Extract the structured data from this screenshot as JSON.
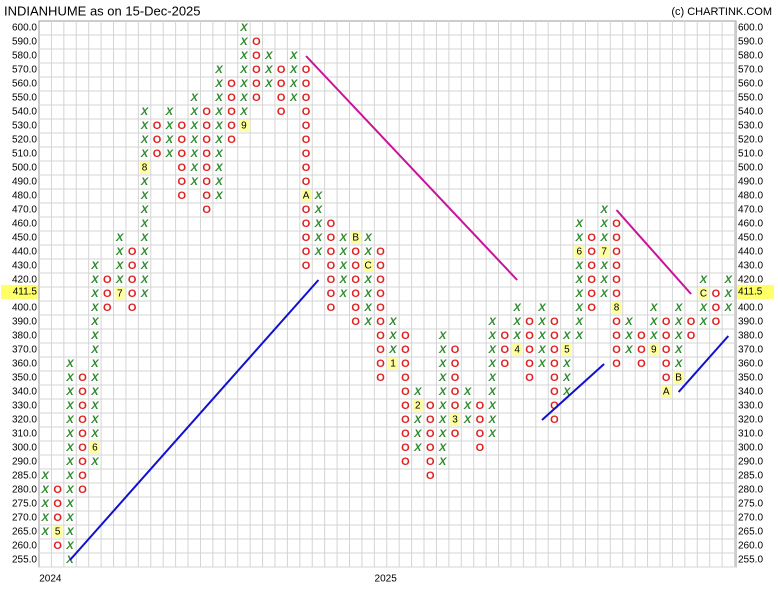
{
  "chart_data": {
    "type": "point-and-figure",
    "title": "INDIANHUME as on 15-Dec-2025",
    "credit": "(c) CHARTINK.COM",
    "x_color": "#2e8b2e",
    "o_color": "#e02020",
    "grid": true,
    "box_levels": [
      600,
      590,
      580,
      570,
      560,
      550,
      540,
      530,
      520,
      510,
      500,
      490,
      480,
      470,
      460,
      450,
      440,
      430,
      420,
      410,
      400,
      390,
      380,
      370,
      360,
      350,
      340,
      330,
      320,
      310,
      300,
      290,
      285,
      280,
      275,
      270,
      265,
      260,
      255
    ],
    "yticks": [
      {
        "value": 600,
        "label": "600.0"
      },
      {
        "value": 590,
        "label": "590.0"
      },
      {
        "value": 580,
        "label": "580.0"
      },
      {
        "value": 570,
        "label": "570.0"
      },
      {
        "value": 560,
        "label": "560.0"
      },
      {
        "value": 550,
        "label": "550.0"
      },
      {
        "value": 540,
        "label": "540.0"
      },
      {
        "value": 530,
        "label": "530.0"
      },
      {
        "value": 520,
        "label": "520.0"
      },
      {
        "value": 510,
        "label": "510.0"
      },
      {
        "value": 500,
        "label": "500.0"
      },
      {
        "value": 490,
        "label": "490.0"
      },
      {
        "value": 480,
        "label": "480.0"
      },
      {
        "value": 470,
        "label": "470.0"
      },
      {
        "value": 460,
        "label": "460.0"
      },
      {
        "value": 450,
        "label": "450.0"
      },
      {
        "value": 440,
        "label": "440.0"
      },
      {
        "value": 430,
        "label": "430.0"
      },
      {
        "value": 420,
        "label": "420.0"
      },
      {
        "value": 400,
        "label": "400.0"
      },
      {
        "value": 390,
        "label": "390.0"
      },
      {
        "value": 380,
        "label": "380.0"
      },
      {
        "value": 370,
        "label": "370.0"
      },
      {
        "value": 360,
        "label": "360.0"
      },
      {
        "value": 350,
        "label": "350.0"
      },
      {
        "value": 340,
        "label": "340.0"
      },
      {
        "value": 330,
        "label": "330.0"
      },
      {
        "value": 320,
        "label": "320.0"
      },
      {
        "value": 310,
        "label": "310.0"
      },
      {
        "value": 300,
        "label": "300.0"
      },
      {
        "value": 290,
        "label": "290.0"
      },
      {
        "value": 285,
        "label": "285.0"
      },
      {
        "value": 280,
        "label": "280.0"
      },
      {
        "value": 275,
        "label": "275.0"
      },
      {
        "value": 270,
        "label": "270.0"
      },
      {
        "value": 265,
        "label": "265.0"
      },
      {
        "value": 260,
        "label": "260.0"
      },
      {
        "value": 255,
        "label": "255.0"
      }
    ],
    "last_price": 411.5,
    "x_labels": [
      {
        "label": "2024",
        "column": 0
      },
      {
        "label": "2025",
        "column": 27
      }
    ],
    "columns": [
      {
        "symbol": "X",
        "low": 265,
        "high": 285
      },
      {
        "symbol": "O",
        "low": 260,
        "high": 280,
        "markers": [
          {
            "label": "5",
            "price": 265
          }
        ]
      },
      {
        "symbol": "X",
        "low": 255,
        "high": 360
      },
      {
        "symbol": "O",
        "low": 280,
        "high": 350
      },
      {
        "symbol": "X",
        "low": 290,
        "high": 430,
        "markers": [
          {
            "label": "6",
            "price": 300
          }
        ]
      },
      {
        "symbol": "O",
        "low": 400,
        "high": 420
      },
      {
        "symbol": "X",
        "low": 410,
        "high": 450,
        "markers": [
          {
            "label": "7",
            "price": 410
          }
        ]
      },
      {
        "symbol": "O",
        "low": 400,
        "high": 440
      },
      {
        "symbol": "X",
        "low": 410,
        "high": 540,
        "markers": [
          {
            "label": "8",
            "price": 500
          }
        ]
      },
      {
        "symbol": "O",
        "low": 510,
        "high": 530
      },
      {
        "symbol": "X",
        "low": 510,
        "high": 540
      },
      {
        "symbol": "O",
        "low": 480,
        "high": 530
      },
      {
        "symbol": "X",
        "low": 490,
        "high": 550
      },
      {
        "symbol": "O",
        "low": 470,
        "high": 540
      },
      {
        "symbol": "X",
        "low": 480,
        "high": 570
      },
      {
        "symbol": "O",
        "low": 520,
        "high": 560
      },
      {
        "symbol": "X",
        "low": 530,
        "high": 600,
        "markers": [
          {
            "label": "9",
            "price": 530
          }
        ]
      },
      {
        "symbol": "O",
        "low": 550,
        "high": 590
      },
      {
        "symbol": "X",
        "low": 560,
        "high": 580
      },
      {
        "symbol": "O",
        "low": 540,
        "high": 570
      },
      {
        "symbol": "X",
        "low": 550,
        "high": 580
      },
      {
        "symbol": "O",
        "low": 430,
        "high": 570,
        "markers": [
          {
            "label": "A",
            "price": 480
          }
        ]
      },
      {
        "symbol": "X",
        "low": 440,
        "high": 480
      },
      {
        "symbol": "O",
        "low": 400,
        "high": 460
      },
      {
        "symbol": "X",
        "low": 410,
        "high": 450
      },
      {
        "symbol": "O",
        "low": 390,
        "high": 450,
        "markers": [
          {
            "label": "B",
            "price": 450
          }
        ]
      },
      {
        "symbol": "X",
        "low": 390,
        "high": 450,
        "markers": [
          {
            "label": "C",
            "price": 430
          }
        ]
      },
      {
        "symbol": "O",
        "low": 350,
        "high": 440
      },
      {
        "symbol": "X",
        "low": 360,
        "high": 390,
        "markers": [
          {
            "label": "1",
            "price": 360
          }
        ]
      },
      {
        "symbol": "O",
        "low": 290,
        "high": 380
      },
      {
        "symbol": "X",
        "low": 300,
        "high": 340,
        "markers": [
          {
            "label": "2",
            "price": 330
          }
        ]
      },
      {
        "symbol": "O",
        "low": 285,
        "high": 330
      },
      {
        "symbol": "X",
        "low": 290,
        "high": 380
      },
      {
        "symbol": "O",
        "low": 310,
        "high": 370,
        "markers": [
          {
            "label": "3",
            "price": 320
          }
        ]
      },
      {
        "symbol": "X",
        "low": 320,
        "high": 340
      },
      {
        "symbol": "O",
        "low": 300,
        "high": 330
      },
      {
        "symbol": "X",
        "low": 310,
        "high": 390
      },
      {
        "symbol": "O",
        "low": 360,
        "high": 380
      },
      {
        "symbol": "X",
        "low": 370,
        "high": 400,
        "markers": [
          {
            "label": "4",
            "price": 370
          }
        ]
      },
      {
        "symbol": "O",
        "low": 350,
        "high": 390
      },
      {
        "symbol": "X",
        "low": 360,
        "high": 400
      },
      {
        "symbol": "O",
        "low": 320,
        "high": 390
      },
      {
        "symbol": "X",
        "low": 340,
        "high": 380,
        "markers": [
          {
            "label": "5",
            "price": 370
          }
        ]
      },
      {
        "symbol": "X",
        "low": 380,
        "high": 460,
        "markers": [
          {
            "label": "6",
            "price": 440
          }
        ]
      },
      {
        "symbol": "O",
        "low": 400,
        "high": 450
      },
      {
        "symbol": "X",
        "low": 410,
        "high": 470,
        "markers": [
          {
            "label": "7",
            "price": 440
          }
        ]
      },
      {
        "symbol": "O",
        "low": 360,
        "high": 460,
        "markers": [
          {
            "label": "8",
            "price": 400
          }
        ]
      },
      {
        "symbol": "X",
        "low": 370,
        "high": 390
      },
      {
        "symbol": "O",
        "low": 360,
        "high": 380
      },
      {
        "symbol": "X",
        "low": 370,
        "high": 400,
        "markers": [
          {
            "label": "9",
            "price": 370
          }
        ]
      },
      {
        "symbol": "O",
        "low": 340,
        "high": 390,
        "markers": [
          {
            "label": "A",
            "price": 340
          }
        ]
      },
      {
        "symbol": "X",
        "low": 350,
        "high": 400,
        "markers": [
          {
            "label": "B",
            "price": 350
          }
        ]
      },
      {
        "symbol": "O",
        "low": 380,
        "high": 390
      },
      {
        "symbol": "X",
        "low": 390,
        "high": 420,
        "markers": [
          {
            "label": "C",
            "price": 410
          }
        ]
      },
      {
        "symbol": "O",
        "low": 390,
        "high": 410
      },
      {
        "symbol": "X",
        "low": 400,
        "high": 420
      }
    ],
    "trendlines": [
      {
        "color": "#1010d0",
        "from": {
          "column": 2,
          "price": 255
        },
        "to": {
          "column": 22,
          "price": 420
        }
      },
      {
        "color": "#c8129a",
        "from": {
          "column": 21,
          "price": 580
        },
        "to": {
          "column": 38,
          "price": 420
        }
      },
      {
        "color": "#1010d0",
        "from": {
          "column": 40,
          "price": 320
        },
        "to": {
          "column": 45,
          "price": 360
        }
      },
      {
        "color": "#c8129a",
        "from": {
          "column": 46,
          "price": 470
        },
        "to": {
          "column": 52,
          "price": 410
        }
      },
      {
        "color": "#1010d0",
        "from": {
          "column": 51,
          "price": 340
        },
        "to": {
          "column": 55,
          "price": 380
        }
      }
    ]
  }
}
